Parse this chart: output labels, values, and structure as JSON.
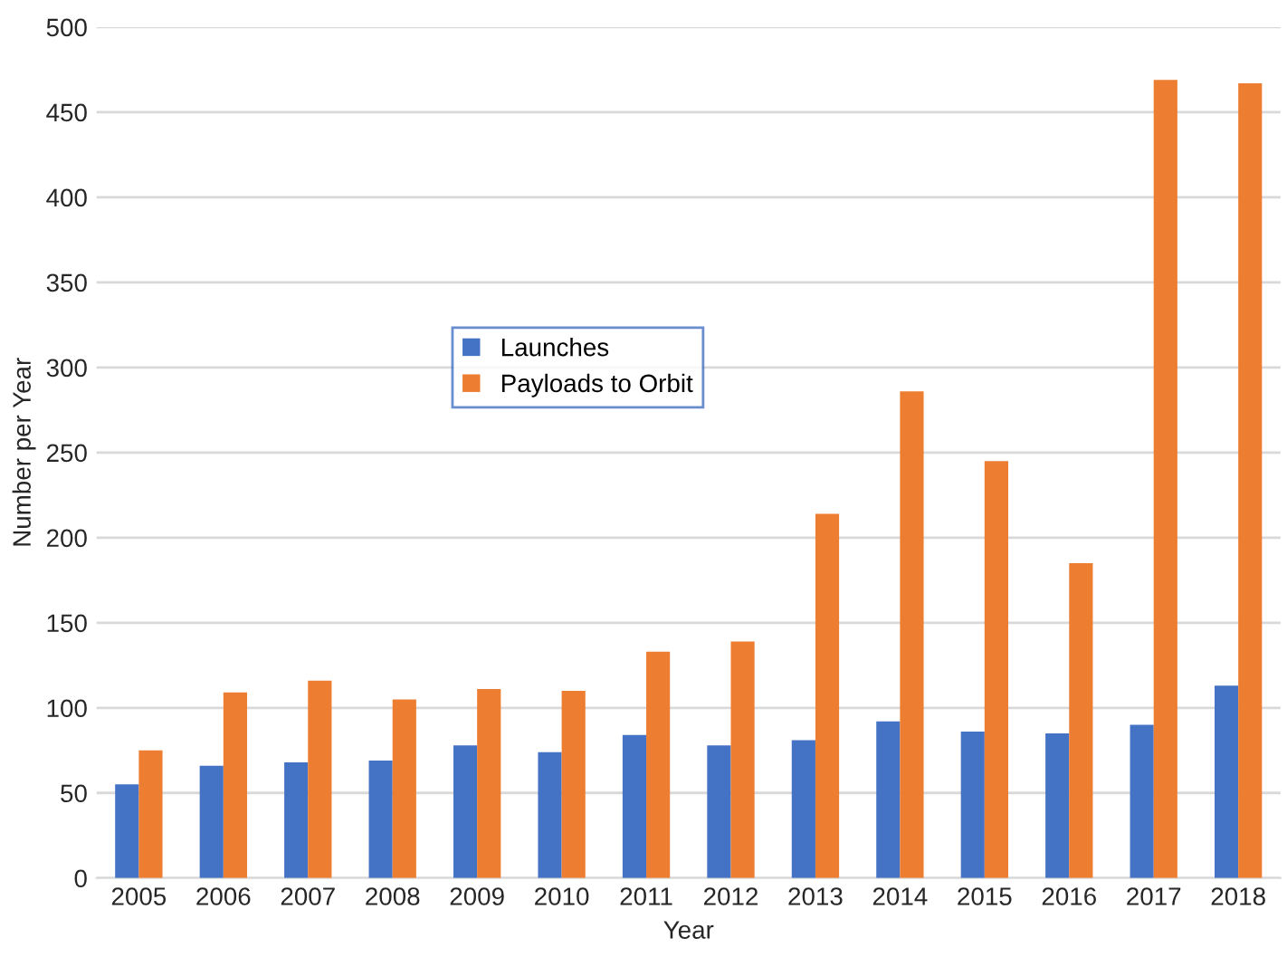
{
  "chart_data": {
    "type": "bar",
    "xlabel": "Year",
    "ylabel": "Number per Year",
    "categories": [
      "2005",
      "2006",
      "2007",
      "2008",
      "2009",
      "2010",
      "2011",
      "2012",
      "2013",
      "2014",
      "2015",
      "2016",
      "2017",
      "2018"
    ],
    "series": [
      {
        "name": "Launches",
        "color": "#4472c4",
        "values": [
          55,
          66,
          68,
          69,
          78,
          74,
          84,
          78,
          81,
          92,
          86,
          85,
          90,
          113
        ]
      },
      {
        "name": "Payloads to Orbit",
        "color": "#ed7d31",
        "values": [
          75,
          109,
          116,
          105,
          111,
          110,
          133,
          139,
          214,
          286,
          245,
          185,
          469,
          467
        ]
      }
    ],
    "ylim": [
      0,
      500
    ],
    "yticks": [
      0,
      50,
      100,
      150,
      200,
      250,
      300,
      350,
      400,
      450,
      500
    ],
    "grid": "y",
    "legend": "center left"
  }
}
